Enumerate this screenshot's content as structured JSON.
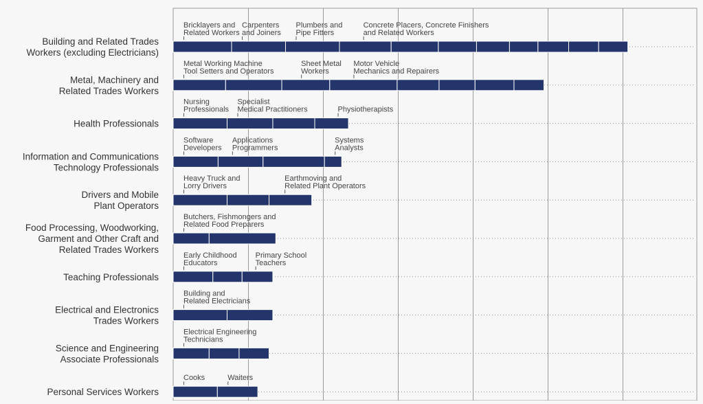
{
  "chart_data": {
    "type": "bar",
    "orientation": "horizontal",
    "stacked": true,
    "x_gridlines": 7,
    "grid": true,
    "colors": {
      "bar": "#23356b",
      "grid": "#9a9a9a",
      "background": "#f7f7f7"
    },
    "rows": [
      {
        "category": [
          "Building and Related Trades",
          "Workers (excluding Electricians)"
        ],
        "segments": [
          0.078,
          0.072,
          0.072,
          0.069,
          0.063,
          0.051,
          0.044,
          0.038,
          0.041,
          0.04,
          0.039
        ],
        "labels": [
          {
            "lines": [
              "Bricklayers and",
              "Related Workers"
            ],
            "at": 0.0
          },
          {
            "lines": [
              "Carpenters",
              "and Joiners"
            ],
            "at": 0.078
          },
          {
            "lines": [
              "Plumbers and",
              "Pipe Fitters"
            ],
            "at": 0.15
          },
          {
            "lines": [
              "Concrete Placers, Concrete Finishers",
              "and Related Workers"
            ],
            "at": 0.24
          }
        ]
      },
      {
        "category": [
          "Metal, Machinery and",
          "Related Trades Workers"
        ],
        "segments": [
          0.07,
          0.075,
          0.064,
          0.09,
          0.056,
          0.048,
          0.052,
          0.04
        ],
        "labels": [
          {
            "lines": [
              "Metal Working Machine",
              "Tool Setters and Operators"
            ],
            "at": 0.0
          },
          {
            "lines": [
              "Sheet Metal",
              "Workers"
            ],
            "at": 0.157
          },
          {
            "lines": [
              "Motor Vehicle",
              "Mechanics and Repairers"
            ],
            "at": 0.227
          }
        ]
      },
      {
        "category": [
          "Health Professionals"
        ],
        "segments": [
          0.072,
          0.061,
          0.056,
          0.045
        ],
        "labels": [
          {
            "lines": [
              "Nursing",
              "Professionals"
            ],
            "at": 0.0
          },
          {
            "lines": [
              "Specialist",
              "Medical Practitioners"
            ],
            "at": 0.072
          },
          {
            "lines": [
              "Physiotherapists"
            ],
            "at": 0.206
          }
        ]
      },
      {
        "category": [
          "Information and Communications",
          "Technology Professionals"
        ],
        "segments": [
          0.06,
          0.06,
          0.082,
          0.023
        ],
        "labels": [
          {
            "lines": [
              "Software",
              "Developers"
            ],
            "at": 0.0
          },
          {
            "lines": [
              "Applications",
              "Programmers"
            ],
            "at": 0.065
          },
          {
            "lines": [
              "Systems",
              "Analysts"
            ],
            "at": 0.202
          }
        ]
      },
      {
        "category": [
          "Drivers and Mobile",
          "Plant Operators"
        ],
        "segments": [
          0.072,
          0.056,
          0.057
        ],
        "labels": [
          {
            "lines": [
              "Heavy Truck and",
              "Lorry Drivers"
            ],
            "at": 0.0
          },
          {
            "lines": [
              "Earthmoving and",
              "Related Plant Operators"
            ],
            "at": 0.135
          }
        ]
      },
      {
        "category": [
          "Food Processing, Woodworking,",
          "Garment and Other Craft and",
          "Related Trades Workers"
        ],
        "segments": [
          0.048,
          0.089
        ],
        "labels": [
          {
            "lines": [
              "Butchers, Fishmongers and",
              "Related Food Preparers"
            ],
            "at": 0.0
          }
        ]
      },
      {
        "category": [
          "Teaching Professionals"
        ],
        "segments": [
          0.053,
          0.039,
          0.041
        ],
        "labels": [
          {
            "lines": [
              "Early Childhood",
              "Educators"
            ],
            "at": 0.0
          },
          {
            "lines": [
              "Primary School",
              "Teachers"
            ],
            "at": 0.096
          }
        ]
      },
      {
        "category": [
          "Electrical and Electronics",
          "Trades Workers"
        ],
        "segments": [
          0.072,
          0.061
        ],
        "labels": [
          {
            "lines": [
              "Building and",
              "Related Electricians"
            ],
            "at": 0.0
          }
        ]
      },
      {
        "category": [
          "Science and Engineering",
          "Associate Professionals"
        ],
        "segments": [
          0.048,
          0.04,
          0.04
        ],
        "labels": [
          {
            "lines": [
              "Electrical Engineering",
              "Technicians"
            ],
            "at": 0.0
          }
        ]
      },
      {
        "category": [
          "Personal Services Workers"
        ],
        "segments": [
          0.059,
          0.054
        ],
        "labels": [
          {
            "lines": [
              "Cooks"
            ],
            "at": 0.0
          },
          {
            "lines": [
              "Waiters"
            ],
            "at": 0.059
          }
        ]
      }
    ]
  }
}
